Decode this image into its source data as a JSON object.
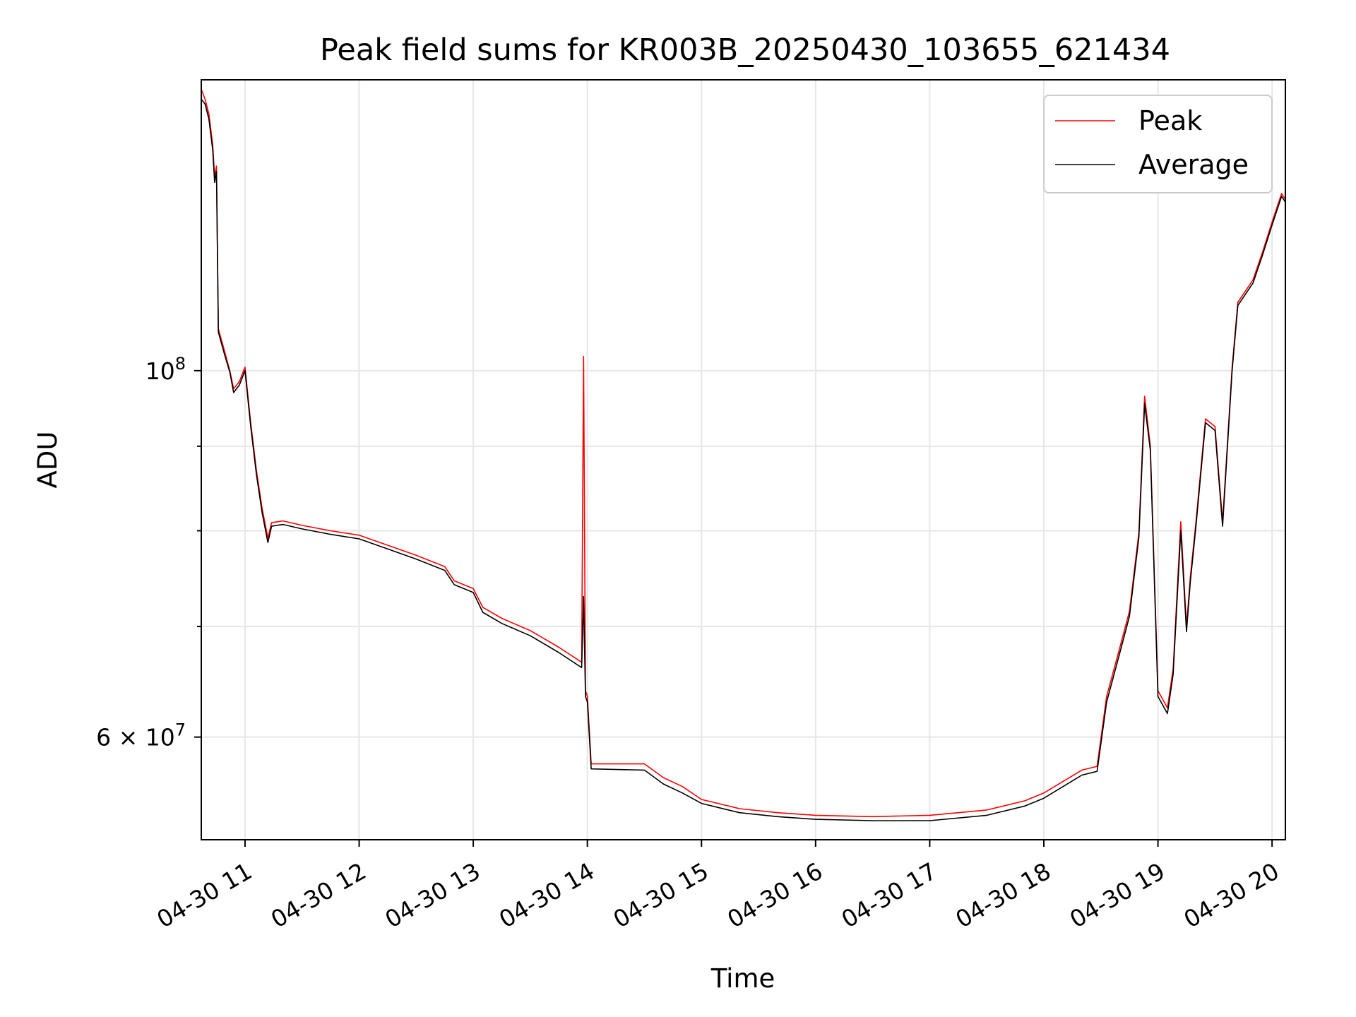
{
  "chart_data": {
    "type": "line",
    "title": "Peak field sums for KR003B_20250430_103655_621434",
    "xlabel": "Time",
    "ylabel": "ADU",
    "x_axis": {
      "kind": "datetime",
      "range": [
        "2025-04-30 10:37",
        "2025-04-30 20:07"
      ],
      "ticks": [
        {
          "value": "2025-04-30 11:00",
          "label": "04-30 11"
        },
        {
          "value": "2025-04-30 12:00",
          "label": "04-30 12"
        },
        {
          "value": "2025-04-30 13:00",
          "label": "04-30 13"
        },
        {
          "value": "2025-04-30 14:00",
          "label": "04-30 14"
        },
        {
          "value": "2025-04-30 15:00",
          "label": "04-30 15"
        },
        {
          "value": "2025-04-30 16:00",
          "label": "04-30 16"
        },
        {
          "value": "2025-04-30 17:00",
          "label": "04-30 17"
        },
        {
          "value": "2025-04-30 18:00",
          "label": "04-30 18"
        },
        {
          "value": "2025-04-30 19:00",
          "label": "04-30 19"
        },
        {
          "value": "2025-04-30 20:00",
          "label": "04-30 20"
        }
      ],
      "tick_label_rotation_deg": 30
    },
    "y_axis": {
      "scale": "log",
      "range": [
        52000000,
        150000000
      ],
      "major_ticks": [
        {
          "value": 100000000,
          "label_base": "10",
          "label_exp": "8"
        },
        {
          "value": 60000000,
          "label_base": "6 × 10",
          "label_exp": "7"
        }
      ],
      "minor_gridlines": [
        70000000,
        80000000,
        90000000
      ]
    },
    "grid": true,
    "legend_position": "upper right",
    "colors": {
      "peak": "#ff0000",
      "average": "#000000"
    },
    "series": [
      {
        "name": "Peak",
        "color": "#ff0000",
        "points": [
          [
            "2025-04-30 10:37",
            148000000
          ],
          [
            "2025-04-30 10:39",
            146000000
          ],
          [
            "2025-04-30 10:41",
            143000000
          ],
          [
            "2025-04-30 10:43",
            137000000
          ],
          [
            "2025-04-30 10:44",
            131000000
          ],
          [
            "2025-04-30 10:45",
            133000000
          ],
          [
            "2025-04-30 10:46",
            106000000
          ],
          [
            "2025-04-30 10:49",
            103000000
          ],
          [
            "2025-04-30 10:52",
            100000000
          ],
          [
            "2025-04-30 10:54",
            97500000
          ],
          [
            "2025-04-30 10:57",
            98500000
          ],
          [
            "2025-04-30 11:00",
            100500000
          ],
          [
            "2025-04-30 11:03",
            93000000
          ],
          [
            "2025-04-30 11:06",
            87000000
          ],
          [
            "2025-04-30 11:09",
            82500000
          ],
          [
            "2025-04-30 11:12",
            79200000
          ],
          [
            "2025-04-30 11:14",
            80900000
          ],
          [
            "2025-04-30 11:20",
            81100000
          ],
          [
            "2025-04-30 11:30",
            80600000
          ],
          [
            "2025-04-30 11:45",
            80000000
          ],
          [
            "2025-04-30 12:00",
            79500000
          ],
          [
            "2025-04-30 12:15",
            78400000
          ],
          [
            "2025-04-30 12:30",
            77300000
          ],
          [
            "2025-04-30 12:45",
            76100000
          ],
          [
            "2025-04-30 12:50",
            74600000
          ],
          [
            "2025-04-30 13:00",
            73800000
          ],
          [
            "2025-04-30 13:05",
            71900000
          ],
          [
            "2025-04-30 13:15",
            70800000
          ],
          [
            "2025-04-30 13:30",
            69600000
          ],
          [
            "2025-04-30 13:45",
            68000000
          ],
          [
            "2025-04-30 13:57",
            66600000
          ],
          [
            "2025-04-30 13:58",
            102000000
          ],
          [
            "2025-04-30 13:59",
            64000000
          ],
          [
            "2025-04-30 14:00",
            63500000
          ],
          [
            "2025-04-30 14:02",
            57800000
          ],
          [
            "2025-04-30 14:30",
            57800000
          ],
          [
            "2025-04-30 14:40",
            56700000
          ],
          [
            "2025-04-30 14:50",
            56000000
          ],
          [
            "2025-04-30 15:00",
            55000000
          ],
          [
            "2025-04-30 15:20",
            54300000
          ],
          [
            "2025-04-30 15:40",
            54000000
          ],
          [
            "2025-04-30 16:00",
            53800000
          ],
          [
            "2025-04-30 16:30",
            53700000
          ],
          [
            "2025-04-30 17:00",
            53800000
          ],
          [
            "2025-04-30 17:30",
            54200000
          ],
          [
            "2025-04-30 17:50",
            54900000
          ],
          [
            "2025-04-30 18:00",
            55500000
          ],
          [
            "2025-04-30 18:20",
            57300000
          ],
          [
            "2025-04-30 18:28",
            57600000
          ],
          [
            "2025-04-30 18:33",
            63500000
          ],
          [
            "2025-04-30 18:40",
            68000000
          ],
          [
            "2025-04-30 18:45",
            71500000
          ],
          [
            "2025-04-30 18:50",
            79800000
          ],
          [
            "2025-04-30 18:53",
            96500000
          ],
          [
            "2025-04-30 18:56",
            90000000
          ],
          [
            "2025-04-30 19:00",
            64000000
          ],
          [
            "2025-04-30 19:05",
            62500000
          ],
          [
            "2025-04-30 19:08",
            66000000
          ],
          [
            "2025-04-30 19:12",
            81000000
          ],
          [
            "2025-04-30 19:15",
            70000000
          ],
          [
            "2025-04-30 19:17",
            75000000
          ],
          [
            "2025-04-30 19:20",
            81000000
          ],
          [
            "2025-04-30 19:25",
            93500000
          ],
          [
            "2025-04-30 19:30",
            92500000
          ],
          [
            "2025-04-30 19:34",
            81000000
          ],
          [
            "2025-04-30 19:39",
            100500000
          ],
          [
            "2025-04-30 19:42",
            110000000
          ],
          [
            "2025-04-30 19:50",
            113500000
          ],
          [
            "2025-04-30 19:55",
            118000000
          ],
          [
            "2025-04-30 20:00",
            123000000
          ],
          [
            "2025-04-30 20:05",
            128000000
          ],
          [
            "2025-04-30 20:07",
            127000000
          ]
        ]
      },
      {
        "name": "Average",
        "color": "#000000",
        "points": [
          [
            "2025-04-30 10:37",
            146000000
          ],
          [
            "2025-04-30 10:39",
            145000000
          ],
          [
            "2025-04-30 10:41",
            142000000
          ],
          [
            "2025-04-30 10:43",
            136000000
          ],
          [
            "2025-04-30 10:44",
            130000000
          ],
          [
            "2025-04-30 10:45",
            132000000
          ],
          [
            "2025-04-30 10:46",
            105500000
          ],
          [
            "2025-04-30 10:49",
            102500000
          ],
          [
            "2025-04-30 10:52",
            99800000
          ],
          [
            "2025-04-30 10:54",
            97000000
          ],
          [
            "2025-04-30 10:57",
            98000000
          ],
          [
            "2025-04-30 11:00",
            100000000
          ],
          [
            "2025-04-30 11:03",
            92500000
          ],
          [
            "2025-04-30 11:06",
            86500000
          ],
          [
            "2025-04-30 11:09",
            82000000
          ],
          [
            "2025-04-30 11:12",
            78700000
          ],
          [
            "2025-04-30 11:14",
            80500000
          ],
          [
            "2025-04-30 11:20",
            80700000
          ],
          [
            "2025-04-30 11:30",
            80200000
          ],
          [
            "2025-04-30 11:45",
            79600000
          ],
          [
            "2025-04-30 12:00",
            79100000
          ],
          [
            "2025-04-30 12:15",
            78000000
          ],
          [
            "2025-04-30 12:30",
            76900000
          ],
          [
            "2025-04-30 12:45",
            75700000
          ],
          [
            "2025-04-30 12:50",
            74200000
          ],
          [
            "2025-04-30 13:00",
            73400000
          ],
          [
            "2025-04-30 13:05",
            71400000
          ],
          [
            "2025-04-30 13:15",
            70300000
          ],
          [
            "2025-04-30 13:30",
            69100000
          ],
          [
            "2025-04-30 13:45",
            67500000
          ],
          [
            "2025-04-30 13:57",
            66100000
          ],
          [
            "2025-04-30 13:58",
            73000000
          ],
          [
            "2025-04-30 13:59",
            63500000
          ],
          [
            "2025-04-30 14:00",
            63000000
          ],
          [
            "2025-04-30 14:02",
            57400000
          ],
          [
            "2025-04-30 14:30",
            57300000
          ],
          [
            "2025-04-30 14:40",
            56200000
          ],
          [
            "2025-04-30 14:50",
            55500000
          ],
          [
            "2025-04-30 15:00",
            54700000
          ],
          [
            "2025-04-30 15:20",
            54000000
          ],
          [
            "2025-04-30 15:40",
            53700000
          ],
          [
            "2025-04-30 16:00",
            53500000
          ],
          [
            "2025-04-30 16:30",
            53400000
          ],
          [
            "2025-04-30 17:00",
            53400000
          ],
          [
            "2025-04-30 17:30",
            53800000
          ],
          [
            "2025-04-30 17:50",
            54500000
          ],
          [
            "2025-04-30 18:00",
            55100000
          ],
          [
            "2025-04-30 18:20",
            56900000
          ],
          [
            "2025-04-30 18:28",
            57200000
          ],
          [
            "2025-04-30 18:33",
            63000000
          ],
          [
            "2025-04-30 18:40",
            67500000
          ],
          [
            "2025-04-30 18:45",
            71000000
          ],
          [
            "2025-04-30 18:50",
            79300000
          ],
          [
            "2025-04-30 18:53",
            95500000
          ],
          [
            "2025-04-30 18:56",
            89500000
          ],
          [
            "2025-04-30 19:00",
            63500000
          ],
          [
            "2025-04-30 19:05",
            62000000
          ],
          [
            "2025-04-30 19:08",
            65500000
          ],
          [
            "2025-04-30 19:12",
            80000000
          ],
          [
            "2025-04-30 19:15",
            69500000
          ],
          [
            "2025-04-30 19:17",
            74500000
          ],
          [
            "2025-04-30 19:20",
            80500000
          ],
          [
            "2025-04-30 19:25",
            93000000
          ],
          [
            "2025-04-30 19:30",
            92000000
          ],
          [
            "2025-04-30 19:34",
            80500000
          ],
          [
            "2025-04-30 19:39",
            100000000
          ],
          [
            "2025-04-30 19:42",
            109500000
          ],
          [
            "2025-04-30 19:50",
            113000000
          ],
          [
            "2025-04-30 19:55",
            117500000
          ],
          [
            "2025-04-30 20:00",
            122500000
          ],
          [
            "2025-04-30 20:05",
            127500000
          ],
          [
            "2025-04-30 20:07",
            126500000
          ]
        ]
      }
    ]
  }
}
